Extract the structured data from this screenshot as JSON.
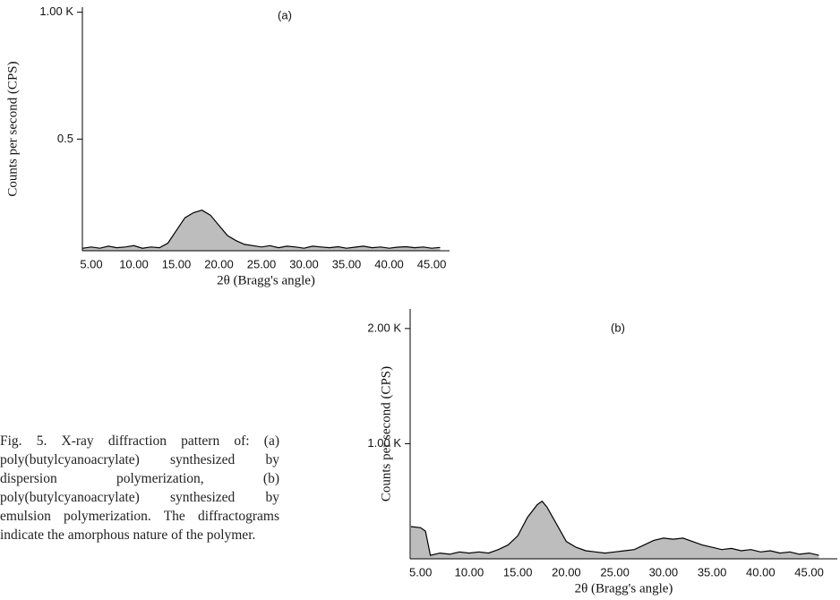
{
  "chart_data": [
    {
      "type": "area",
      "title": "(a)",
      "xlabel": "2θ (Bragg's angle)",
      "ylabel": "Counts per second (CPS)",
      "color": "#000000",
      "fill_color": "#bdbdbd",
      "xlim": [
        3.95,
        47.1
      ],
      "ylim": [
        0.06,
        1.02
      ],
      "xticks": [
        {
          "value": 5,
          "label": "5.00"
        },
        {
          "value": 10,
          "label": "10.00"
        },
        {
          "value": 15,
          "label": "15.00"
        },
        {
          "value": 20,
          "label": "20.00"
        },
        {
          "value": 25,
          "label": "25.00"
        },
        {
          "value": 30,
          "label": "30.00"
        },
        {
          "value": 35,
          "label": "35.00"
        },
        {
          "value": 40,
          "label": "40.00"
        },
        {
          "value": 45,
          "label": "45.00"
        }
      ],
      "yticks": [
        {
          "value": 1,
          "label": "1.00 K"
        },
        0.5
      ],
      "x": [
        4,
        5,
        6,
        7,
        8,
        9,
        10,
        11,
        12,
        13,
        14,
        15,
        16,
        17,
        18,
        19,
        20,
        21,
        22,
        23,
        24,
        25,
        26,
        27,
        28,
        29,
        30,
        31,
        32,
        33,
        34,
        35,
        36,
        37,
        38,
        39,
        40,
        41,
        42,
        43,
        44,
        45,
        46
      ],
      "values": [
        0.07,
        0.075,
        0.07,
        0.078,
        0.072,
        0.075,
        0.08,
        0.07,
        0.075,
        0.072,
        0.09,
        0.14,
        0.19,
        0.21,
        0.22,
        0.2,
        0.16,
        0.12,
        0.1,
        0.085,
        0.08,
        0.075,
        0.08,
        0.072,
        0.078,
        0.075,
        0.07,
        0.078,
        0.075,
        0.072,
        0.076,
        0.07,
        0.074,
        0.078,
        0.072,
        0.075,
        0.07,
        0.074,
        0.076,
        0.072,
        0.075,
        0.07,
        0.073
      ]
    },
    {
      "type": "area",
      "title": "(b)",
      "xlabel": "2θ (Bragg's angle)",
      "ylabel": "Counts per second (CPS)",
      "color": "#000000",
      "fill_color": "#bdbdbd",
      "xlim": [
        3.92,
        47.9
      ],
      "ylim": [
        0,
        2.17
      ],
      "xticks": [
        {
          "value": 5,
          "label": "5.00"
        },
        {
          "value": 10,
          "label": "10.00"
        },
        {
          "value": 15,
          "label": "15.00"
        },
        {
          "value": 20,
          "label": "20.00"
        },
        {
          "value": 25,
          "label": "25.00"
        },
        {
          "value": 30,
          "label": "30.00"
        },
        {
          "value": 35,
          "label": "35.00"
        },
        {
          "value": 40,
          "label": "40.00"
        },
        {
          "value": 45,
          "label": "45.00"
        }
      ],
      "yticks": [
        {
          "value": 2,
          "label": "2.00 K"
        },
        {
          "value": 1,
          "label": "1.00 K"
        }
      ],
      "x": [
        4,
        5,
        5.5,
        6,
        7,
        8,
        9,
        10,
        11,
        12,
        13,
        14,
        15,
        16,
        17,
        17.5,
        18,
        19,
        20,
        21,
        22,
        23,
        24,
        25,
        26,
        27,
        28,
        29,
        30,
        31,
        32,
        33,
        34,
        35,
        36,
        37,
        38,
        39,
        40,
        41,
        42,
        43,
        44,
        45,
        46
      ],
      "values": [
        0.28,
        0.27,
        0.24,
        0.03,
        0.05,
        0.04,
        0.06,
        0.05,
        0.06,
        0.05,
        0.08,
        0.12,
        0.2,
        0.36,
        0.47,
        0.5,
        0.45,
        0.3,
        0.15,
        0.1,
        0.07,
        0.06,
        0.05,
        0.06,
        0.07,
        0.08,
        0.12,
        0.16,
        0.18,
        0.17,
        0.18,
        0.15,
        0.12,
        0.1,
        0.08,
        0.09,
        0.07,
        0.08,
        0.06,
        0.07,
        0.05,
        0.06,
        0.04,
        0.05,
        0.03
      ]
    }
  ],
  "caption": "Fig. 5. X-ray diffraction pattern of: (a) poly(butylcyanoacrylate) synthesized by dispersion polymerization, (b) poly(butylcyanoacrylate) synthesized by emulsion polymerization. The diffractograms indicate the amorphous nature of the polymer."
}
